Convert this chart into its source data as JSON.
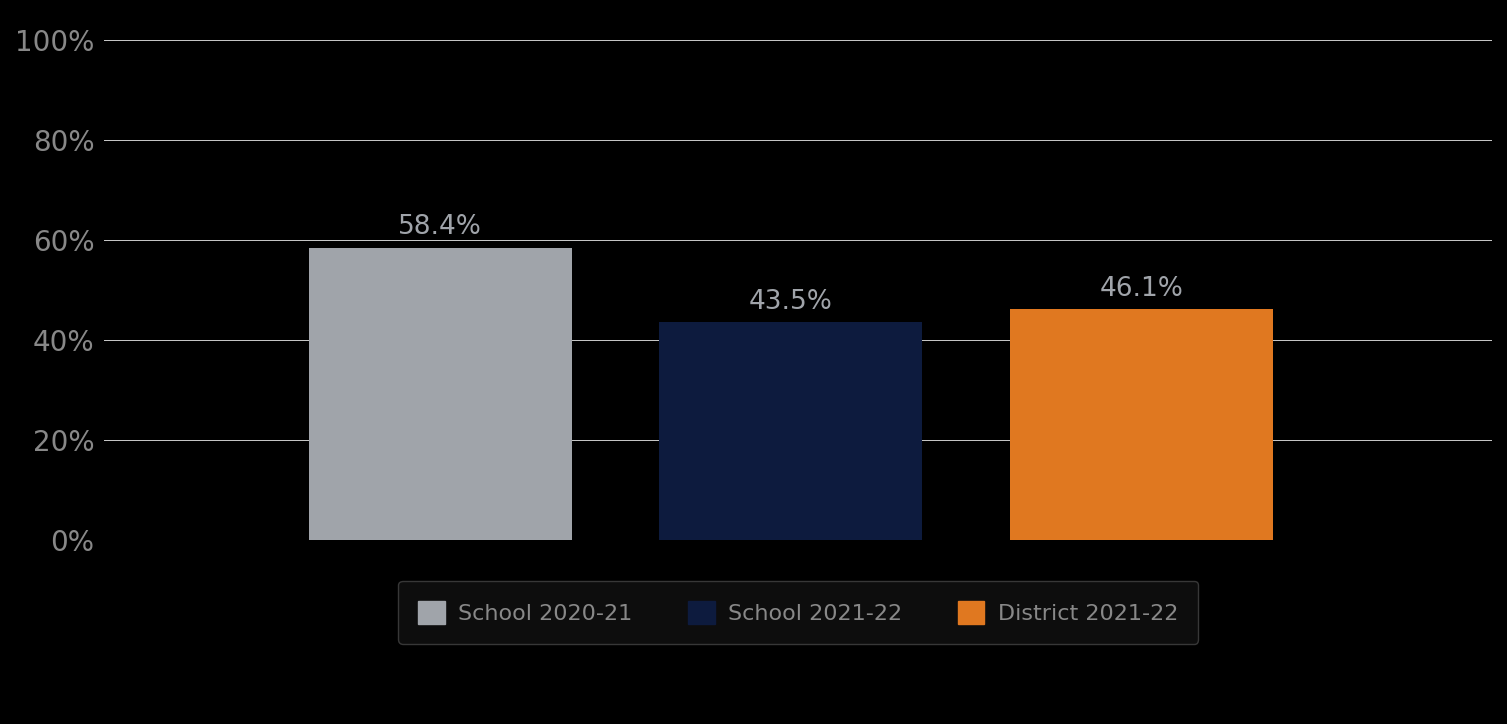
{
  "categories": [
    "School 2020-21",
    "School 2021-22",
    "District 2021-22"
  ],
  "values": [
    58.4,
    43.5,
    46.1
  ],
  "bar_colors": [
    "#a0a4aa",
    "#0d1b3e",
    "#e07820"
  ],
  "label_color": "#a0a4aa",
  "label_fontsize": 19,
  "ytick_labels": [
    "0%",
    "20%",
    "40%",
    "60%",
    "80%",
    "100%"
  ],
  "ytick_values": [
    0,
    20,
    40,
    60,
    80,
    100
  ],
  "ylim": [
    0,
    105
  ],
  "background_color": "#000000",
  "plot_bg_color": "#000000",
  "grid_color": "#cccccc",
  "tick_color": "#888888",
  "tick_fontsize": 20,
  "legend_fontsize": 16,
  "bar_width": 0.18,
  "x_positions": [
    0.28,
    0.52,
    0.76
  ],
  "xlim": [
    0.05,
    1.0
  ]
}
